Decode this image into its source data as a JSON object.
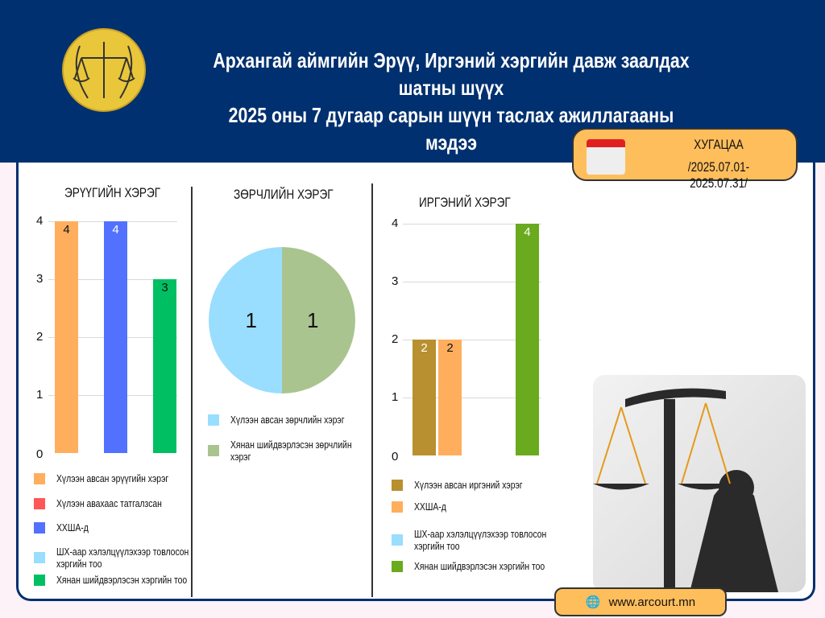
{
  "header": {
    "title_line1": "Архангай аймгийн Эрүү, Иргэний хэргийн давж заалдах шатны шүүх",
    "title_line2": "2025 оны 7 дугаар сарын шүүн таслах ажиллагааны мэдээ"
  },
  "period": {
    "label": "ХУГАЦАА",
    "range": "/2025.07.01-2025.07.31/"
  },
  "footer": {
    "website": "www.arcourt.mn"
  },
  "chart_data": [
    {
      "type": "bar",
      "title": "ЭРҮҮГИЙН ХЭРЭГ",
      "ylim": [
        0,
        4
      ],
      "yticks": [
        "0",
        "1",
        "2",
        "3",
        "4"
      ],
      "grid": true,
      "categories": [
        "Хүлээн авсан эрүүгийн хэрэг",
        "Хүлээн авахаас татгалзсан",
        "ХХША-д",
        "ШХ-аар хэлэлцүүлэхээр товлосон хэргийн тоо",
        "Хянан шийдвэрлэсэн хэргийн тоо"
      ],
      "values": [
        4,
        0,
        4,
        0,
        3
      ],
      "colors": [
        "#ffae5e",
        "#ff5757",
        "#5271ff",
        "#99ddff",
        "#00bf63"
      ],
      "legend": "bottom"
    },
    {
      "type": "pie",
      "title": "ЗӨРЧЛИЙН ХЭРЭГ",
      "categories": [
        "Хүлээн авсан зөрчлийн хэрэг",
        "Хянан шийдвэрлэсэн зөрчлийн хэрэг"
      ],
      "values": [
        1,
        1
      ],
      "colors": [
        "#99ddff",
        "#a9c48f"
      ],
      "legend": "bottom"
    },
    {
      "type": "bar",
      "title": "ИРГЭНИЙ ХЭРЭГ",
      "ylim": [
        0,
        4
      ],
      "yticks": [
        "0",
        "1",
        "2",
        "3",
        "4"
      ],
      "grid": true,
      "categories": [
        "Хүлээн авсан иргэний хэрэг",
        "ХХША-д",
        "ШХ-аар хэлэлцүүлэхээр товлосон хэргийн тоо",
        "Хянан шийдвэрлэсэн хэргийн тоо"
      ],
      "values": [
        2,
        2,
        0,
        4
      ],
      "colors": [
        "#b8902f",
        "#ffae5e",
        "#99ddff",
        "#6aaa1e"
      ],
      "legend": "bottom"
    }
  ]
}
